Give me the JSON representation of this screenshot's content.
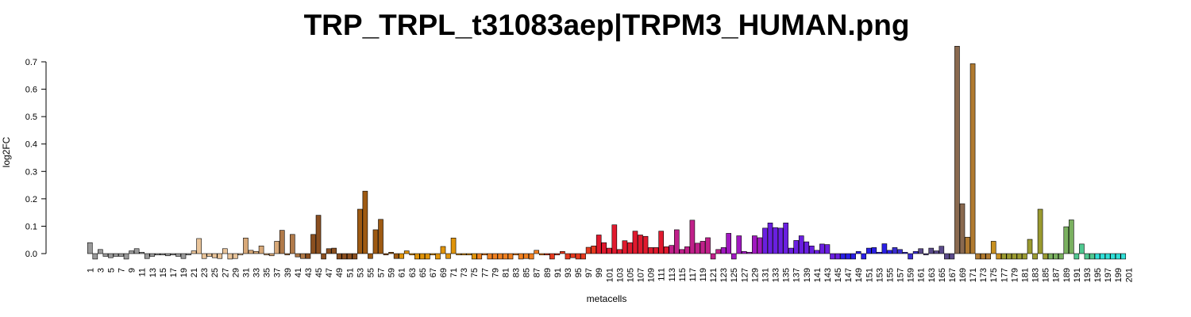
{
  "chart_data": {
    "type": "bar",
    "title": "TRP_TRPL_t31083aep|TRPM3_HUMAN.png",
    "xlabel": "metacells",
    "ylabel": "log2FC",
    "ylim": [
      -0.02,
      0.76
    ],
    "yticks": [
      0.0,
      0.1,
      0.2,
      0.3,
      0.4,
      0.5,
      0.6,
      0.7
    ],
    "ytick_labels": [
      "0.0",
      "0.1",
      "0.2",
      "0.3",
      "0.4",
      "0.5",
      "0.6",
      "0.7"
    ],
    "xtick_labels": [
      "1",
      "3",
      "5",
      "7",
      "9",
      "11",
      "13",
      "15",
      "17",
      "19",
      "21",
      "23",
      "25",
      "27",
      "29",
      "31",
      "33",
      "35",
      "37",
      "39",
      "41",
      "43",
      "45",
      "47",
      "49",
      "51",
      "53",
      "55",
      "57",
      "59",
      "61",
      "63",
      "65",
      "67",
      "69",
      "71",
      "73",
      "75",
      "77",
      "79",
      "81",
      "83",
      "85",
      "87",
      "89",
      "91",
      "93",
      "95",
      "97",
      "99",
      "101",
      "103",
      "105",
      "107",
      "109",
      "111",
      "113",
      "115",
      "117",
      "119",
      "121",
      "123",
      "125",
      "127",
      "129",
      "131",
      "133",
      "135",
      "137",
      "139",
      "141",
      "143",
      "145",
      "147",
      "149",
      "151",
      "153",
      "155",
      "157",
      "159",
      "161",
      "163",
      "165",
      "167",
      "169",
      "171",
      "173",
      "175",
      "177",
      "179",
      "181",
      "183",
      "185",
      "187",
      "189",
      "191",
      "193",
      "195",
      "197",
      "199",
      "201"
    ],
    "categories_count": 201,
    "values": [
      0.04,
      -0.02,
      0.015,
      -0.01,
      -0.015,
      -0.01,
      -0.01,
      -0.02,
      0.01,
      0.018,
      0.005,
      -0.018,
      -0.01,
      -0.005,
      -0.005,
      -0.008,
      -0.005,
      -0.01,
      -0.018,
      -0.005,
      0.01,
      0.055,
      -0.018,
      -0.01,
      -0.015,
      -0.018,
      0.018,
      -0.02,
      -0.018,
      -0.005,
      0.057,
      0.012,
      0.008,
      0.028,
      -0.005,
      -0.008,
      0.045,
      0.085,
      -0.005,
      0.07,
      -0.012,
      -0.018,
      -0.018,
      0.07,
      0.14,
      -0.02,
      0.018,
      0.02,
      -0.02,
      -0.02,
      -0.02,
      -0.02,
      0.162,
      0.228,
      -0.018,
      0.087,
      0.125,
      -0.005,
      0.005,
      -0.018,
      -0.018,
      0.01,
      -0.005,
      -0.02,
      -0.02,
      -0.02,
      -0.005,
      -0.02,
      0.026,
      -0.018,
      0.057,
      -0.005,
      -0.005,
      -0.005,
      -0.02,
      -0.02,
      -0.005,
      -0.02,
      -0.02,
      -0.02,
      -0.02,
      -0.02,
      -0.005,
      -0.02,
      -0.018,
      -0.02,
      0.012,
      -0.005,
      -0.005,
      -0.02,
      -0.005,
      0.008,
      -0.02,
      -0.015,
      -0.02,
      -0.02,
      0.023,
      0.028,
      0.068,
      0.04,
      0.02,
      0.105,
      0.015,
      0.047,
      0.04,
      0.082,
      0.068,
      0.063,
      0.022,
      0.022,
      0.082,
      0.025,
      0.03,
      0.087,
      0.015,
      0.025,
      0.122,
      0.038,
      0.045,
      0.058,
      -0.02,
      0.015,
      0.022,
      0.074,
      -0.02,
      0.065,
      0.008,
      0.005,
      0.065,
      0.058,
      0.093,
      0.112,
      0.095,
      0.093,
      0.112,
      0.02,
      0.048,
      0.065,
      0.043,
      0.028,
      0.012,
      0.035,
      0.033,
      -0.02,
      -0.02,
      -0.02,
      -0.02,
      -0.02,
      0.008,
      -0.02,
      0.02,
      0.022,
      0.005,
      0.036,
      0.012,
      0.022,
      0.015,
      0.005,
      -0.02,
      0.008,
      0.018,
      -0.005,
      0.02,
      0.01,
      0.027,
      -0.02,
      -0.02,
      0.757,
      0.182,
      0.06,
      0.693,
      -0.02,
      -0.02,
      -0.02,
      0.045,
      -0.02,
      -0.02,
      -0.02,
      -0.02,
      -0.02,
      -0.02,
      0.052,
      -0.02,
      0.162,
      -0.02,
      -0.02,
      -0.02,
      -0.02,
      0.098,
      0.123,
      -0.02,
      0.035,
      -0.02,
      -0.02,
      -0.02,
      -0.02,
      -0.02,
      -0.02,
      -0.02,
      -0.02
    ],
    "color_stops": [
      {
        "from": 1,
        "to": 20,
        "color": "#9a9a9a"
      },
      {
        "from": 21,
        "to": 30,
        "color": "#e9c49a"
      },
      {
        "from": 31,
        "to": 37,
        "color": "#d7a878"
      },
      {
        "from": 38,
        "to": 42,
        "color": "#b07a4a"
      },
      {
        "from": 43,
        "to": 52,
        "color": "#8a4f20"
      },
      {
        "from": 53,
        "to": 60,
        "color": "#9e5a12"
      },
      {
        "from": 61,
        "to": 75,
        "color": "#e0940a"
      },
      {
        "from": 76,
        "to": 88,
        "color": "#f08020"
      },
      {
        "from": 89,
        "to": 98,
        "color": "#e63a1f"
      },
      {
        "from": 99,
        "to": 112,
        "color": "#e01a2e"
      },
      {
        "from": 113,
        "to": 122,
        "color": "#c0208a"
      },
      {
        "from": 123,
        "to": 130,
        "color": "#a018c0"
      },
      {
        "from": 131,
        "to": 145,
        "color": "#6a1fe0"
      },
      {
        "from": 146,
        "to": 155,
        "color": "#2a1fe6"
      },
      {
        "from": 156,
        "to": 160,
        "color": "#3a2ed0"
      },
      {
        "from": 161,
        "to": 167,
        "color": "#5a4a8a"
      },
      {
        "from": 168,
        "to": 169,
        "color": "#8a6a50"
      },
      {
        "from": 170,
        "to": 174,
        "color": "#b07a30"
      },
      {
        "from": 175,
        "to": 176,
        "color": "#c89020"
      },
      {
        "from": 177,
        "to": 185,
        "color": "#9a9a30"
      },
      {
        "from": 186,
        "to": 190,
        "color": "#7ab060"
      },
      {
        "from": 191,
        "to": 194,
        "color": "#50c890"
      },
      {
        "from": 195,
        "to": 201,
        "color": "#30e0d8"
      }
    ]
  }
}
